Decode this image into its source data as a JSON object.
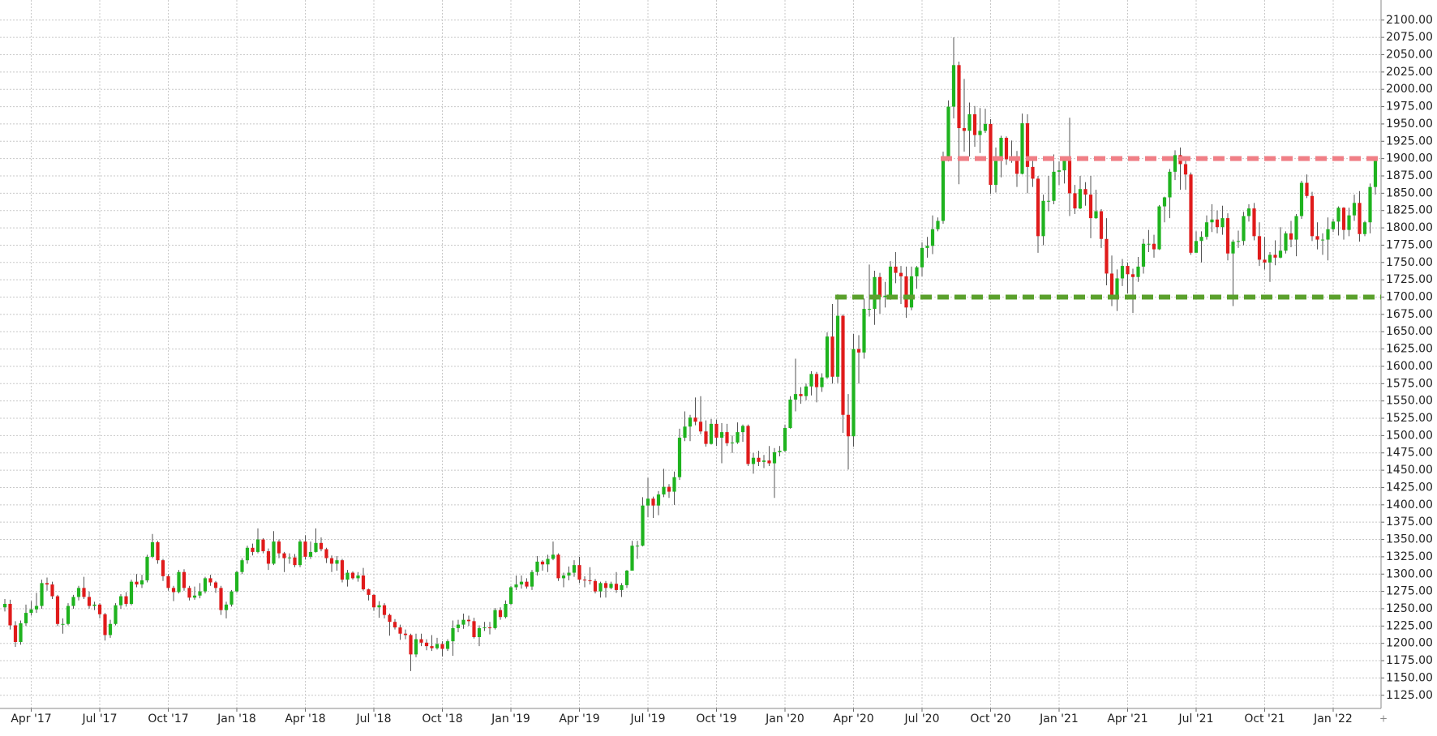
{
  "chart_data": {
    "type": "candlestick",
    "categories": [
      null,
      null,
      null,
      null,
      null,
      "Apr '17",
      null,
      null,
      null,
      null,
      null,
      null,
      null,
      null,
      null,
      null,
      null,
      null,
      "Jul '17",
      null,
      null,
      null,
      null,
      null,
      null,
      null,
      null,
      null,
      null,
      null,
      null,
      "Oct '17",
      null,
      null,
      null,
      null,
      null,
      null,
      null,
      null,
      null,
      null,
      null,
      null,
      "Jan '18",
      null,
      null,
      null,
      null,
      null,
      null,
      null,
      null,
      null,
      null,
      null,
      null,
      "Apr '18",
      null,
      null,
      null,
      null,
      null,
      null,
      null,
      null,
      null,
      null,
      null,
      null,
      "Jul '18",
      null,
      null,
      null,
      null,
      null,
      null,
      null,
      null,
      null,
      null,
      null,
      null,
      "Oct '18",
      null,
      null,
      null,
      null,
      null,
      null,
      null,
      null,
      null,
      null,
      null,
      null,
      "Jan '19",
      null,
      null,
      null,
      null,
      null,
      null,
      null,
      null,
      null,
      null,
      null,
      null,
      "Apr '19",
      null,
      null,
      null,
      null,
      null,
      null,
      null,
      null,
      null,
      null,
      null,
      null,
      "Jul '19",
      null,
      null,
      null,
      null,
      null,
      null,
      null,
      null,
      null,
      null,
      null,
      null,
      "Oct '19",
      null,
      null,
      null,
      null,
      null,
      null,
      null,
      null,
      null,
      null,
      null,
      null,
      "Jan '20",
      null,
      null,
      null,
      null,
      null,
      null,
      null,
      null,
      null,
      null,
      null,
      null,
      "Apr '20",
      null,
      null,
      null,
      null,
      null,
      null,
      null,
      null,
      null,
      null,
      null,
      null,
      "Jul '20",
      null,
      null,
      null,
      null,
      null,
      null,
      null,
      null,
      null,
      null,
      null,
      null,
      "Oct '20",
      null,
      null,
      null,
      null,
      null,
      null,
      null,
      null,
      null,
      null,
      null,
      null,
      "Jan '21",
      null,
      null,
      null,
      null,
      null,
      null,
      null,
      null,
      null,
      null,
      null,
      null,
      "Apr '21",
      null,
      null,
      null,
      null,
      null,
      null,
      null,
      null,
      null,
      null,
      null,
      null,
      "Jul '21",
      null,
      null,
      null,
      null,
      null,
      null,
      null,
      null,
      null,
      null,
      null,
      null,
      "Oct '21",
      null,
      null,
      null,
      null,
      null,
      null,
      null,
      null,
      null,
      null,
      null,
      null,
      "Jan '22",
      null,
      null,
      null,
      null,
      null,
      null,
      null,
      null
    ],
    "open": [
      1252,
      1257,
      1226,
      1202,
      1229,
      1244,
      1249,
      1254,
      1287,
      1285,
      1268,
      1228,
      1228,
      1254,
      1267,
      1280,
      1267,
      1254,
      1256,
      1242,
      1212,
      1228,
      1255,
      1268,
      1257,
      1289,
      1285,
      1291,
      1325,
      1346,
      1320,
      1297,
      1280,
      1274,
      1303,
      1280,
      1266,
      1269,
      1275,
      1294,
      1288,
      1280,
      1248,
      1256,
      1275,
      1303,
      1320,
      1338,
      1332,
      1350,
      1333,
      1315,
      1347,
      1330,
      1323,
      1324,
      1313,
      1347,
      1325,
      1332,
      1345,
      1336,
      1323,
      1315,
      1320,
      1292,
      1302,
      1294,
      1298,
      1278,
      1270,
      1252,
      1255,
      1241,
      1231,
      1223,
      1214,
      1212,
      1184,
      1206,
      1201,
      1196,
      1193,
      1199,
      1192,
      1203,
      1222,
      1227,
      1234,
      1232,
      1209,
      1222,
      1223,
      1222,
      1248,
      1238,
      1257,
      1281,
      1285,
      1289,
      1282,
      1303,
      1318,
      1314,
      1322,
      1328,
      1294,
      1298,
      1302,
      1313,
      1292,
      1291,
      1290,
      1275,
      1287,
      1280,
      1286,
      1277,
      1284,
      1305,
      1341,
      1341,
      1399,
      1409,
      1399,
      1415,
      1426,
      1419,
      1440,
      1497,
      1513,
      1526,
      1520,
      1506,
      1488,
      1517,
      1497,
      1505,
      1489,
      1490,
      1505,
      1514,
      1459,
      1468,
      1462,
      1464,
      1460,
      1476,
      1478,
      1511,
      1552,
      1560,
      1557,
      1571,
      1589,
      1570,
      1584,
      1643,
      1585,
      1673,
      1530,
      1499,
      1625,
      1620,
      1683,
      1683,
      1729,
      1700,
      1702,
      1744,
      1735,
      1730,
      1685,
      1730,
      1743,
      1771,
      1774,
      1798,
      1810,
      1902,
      1975,
      2035,
      1944,
      1940,
      1964,
      1934,
      1940,
      1950,
      1862,
      1900,
      1930,
      1899,
      1902,
      1878,
      1951,
      1888,
      1871,
      1788,
      1839,
      1839,
      1881,
      1883,
      1898,
      1850,
      1828,
      1856,
      1848,
      1814,
      1824,
      1784,
      1734,
      1700,
      1727,
      1745,
      1733,
      1729,
      1744,
      1777,
      1777,
      1769,
      1831,
      1844,
      1881,
      1905,
      1892,
      1877,
      1764,
      1781,
      1787,
      1808,
      1812,
      1801,
      1814,
      1763,
      1780,
      1781,
      1817,
      1828,
      1788,
      1754,
      1750,
      1761,
      1757,
      1767,
      1792,
      1783,
      1817,
      1865,
      1846,
      1788,
      1783,
      1783,
      1798,
      1809,
      1829,
      1797,
      1818,
      1836,
      1791,
      1808,
      1859
    ],
    "high": [
      1264,
      1263,
      1232,
      1233,
      1256,
      1261,
      1273,
      1292,
      1295,
      1289,
      1270,
      1236,
      1258,
      1270,
      1283,
      1296,
      1275,
      1260,
      1258,
      1244,
      1234,
      1258,
      1271,
      1274,
      1292,
      1300,
      1299,
      1328,
      1358,
      1348,
      1322,
      1300,
      1283,
      1306,
      1307,
      1283,
      1282,
      1287,
      1296,
      1299,
      1290,
      1283,
      1260,
      1277,
      1305,
      1323,
      1341,
      1344,
      1366,
      1352,
      1337,
      1362,
      1350,
      1332,
      1330,
      1329,
      1350,
      1356,
      1347,
      1366,
      1353,
      1338,
      1327,
      1326,
      1322,
      1306,
      1304,
      1303,
      1309,
      1279,
      1271,
      1261,
      1258,
      1243,
      1235,
      1227,
      1220,
      1214,
      1214,
      1214,
      1206,
      1212,
      1208,
      1203,
      1206,
      1233,
      1234,
      1243,
      1240,
      1237,
      1226,
      1231,
      1231,
      1251,
      1252,
      1262,
      1283,
      1298,
      1298,
      1294,
      1306,
      1326,
      1320,
      1328,
      1347,
      1330,
      1302,
      1311,
      1320,
      1325,
      1297,
      1310,
      1293,
      1289,
      1290,
      1289,
      1303,
      1287,
      1306,
      1348,
      1348,
      1411,
      1439,
      1412,
      1420,
      1452,
      1430,
      1448,
      1510,
      1535,
      1530,
      1555,
      1557,
      1522,
      1524,
      1523,
      1518,
      1517,
      1500,
      1519,
      1516,
      1516,
      1475,
      1478,
      1472,
      1485,
      1482,
      1485,
      1516,
      1557,
      1611,
      1570,
      1575,
      1593,
      1592,
      1590,
      1649,
      1690,
      1704,
      1675,
      1560,
      1647,
      1645,
      1698,
      1747,
      1738,
      1735,
      1722,
      1752,
      1765,
      1745,
      1744,
      1744,
      1745,
      1779,
      1787,
      1818,
      1815,
      1910,
      1984,
      2075,
      2040,
      2015,
      1981,
      1976,
      1973,
      1972,
      1957,
      1916,
      1933,
      1932,
      1926,
      1911,
      1965,
      1964,
      1900,
      1875,
      1848,
      1875,
      1906,
      1896,
      1903,
      1959,
      1862,
      1875,
      1866,
      1875,
      1855,
      1827,
      1814,
      1760,
      1740,
      1755,
      1750,
      1741,
      1758,
      1784,
      1797,
      1790,
      1833,
      1845,
      1885,
      1912,
      1916,
      1903,
      1880,
      1795,
      1795,
      1818,
      1834,
      1825,
      1832,
      1821,
      1783,
      1796,
      1823,
      1834,
      1836,
      1808,
      1787,
      1765,
      1782,
      1801,
      1795,
      1810,
      1820,
      1868,
      1877,
      1852,
      1808,
      1792,
      1815,
      1813,
      1831,
      1830,
      1829,
      1848,
      1853,
      1810,
      1864,
      1902
    ],
    "low": [
      1246,
      1220,
      1195,
      1198,
      1225,
      1240,
      1244,
      1250,
      1276,
      1264,
      1225,
      1214,
      1226,
      1250,
      1262,
      1264,
      1250,
      1248,
      1236,
      1204,
      1208,
      1226,
      1250,
      1253,
      1255,
      1281,
      1280,
      1288,
      1323,
      1315,
      1290,
      1276,
      1261,
      1272,
      1276,
      1262,
      1263,
      1265,
      1272,
      1283,
      1273,
      1241,
      1236,
      1253,
      1273,
      1300,
      1315,
      1327,
      1330,
      1330,
      1306,
      1313,
      1323,
      1303,
      1315,
      1310,
      1310,
      1321,
      1322,
      1331,
      1333,
      1316,
      1303,
      1305,
      1288,
      1282,
      1292,
      1289,
      1276,
      1262,
      1247,
      1237,
      1236,
      1211,
      1220,
      1205,
      1206,
      1160,
      1180,
      1196,
      1190,
      1189,
      1191,
      1181,
      1189,
      1182,
      1216,
      1221,
      1225,
      1207,
      1196,
      1218,
      1213,
      1220,
      1234,
      1236,
      1255,
      1277,
      1279,
      1279,
      1277,
      1298,
      1305,
      1303,
      1320,
      1290,
      1281,
      1291,
      1296,
      1287,
      1281,
      1285,
      1272,
      1266,
      1266,
      1278,
      1273,
      1267,
      1280,
      1305,
      1322,
      1340,
      1382,
      1381,
      1385,
      1411,
      1410,
      1400,
      1436,
      1492,
      1492,
      1515,
      1502,
      1484,
      1487,
      1485,
      1460,
      1485,
      1475,
      1488,
      1491,
      1456,
      1445,
      1456,
      1453,
      1456,
      1410,
      1470,
      1476,
      1510,
      1535,
      1546,
      1551,
      1558,
      1548,
      1563,
      1582,
      1575,
      1576,
      1504,
      1451,
      1484,
      1575,
      1611,
      1672,
      1660,
      1676,
      1685,
      1696,
      1720,
      1690,
      1670,
      1681,
      1712,
      1730,
      1757,
      1762,
      1795,
      1806,
      1896,
      1958,
      1863,
      1910,
      1903,
      1917,
      1908,
      1937,
      1849,
      1851,
      1873,
      1891,
      1894,
      1859,
      1877,
      1850,
      1859,
      1764,
      1775,
      1824,
      1834,
      1862,
      1864,
      1817,
      1820,
      1827,
      1832,
      1785,
      1813,
      1771,
      1717,
      1687,
      1680,
      1716,
      1705,
      1677,
      1722,
      1734,
      1765,
      1757,
      1768,
      1808,
      1814,
      1869,
      1855,
      1855,
      1761,
      1770,
      1750,
      1783,
      1794,
      1792,
      1790,
      1753,
      1687,
      1771,
      1775,
      1809,
      1782,
      1745,
      1740,
      1722,
      1746,
      1756,
      1763,
      1772,
      1759,
      1813,
      1843,
      1781,
      1769,
      1761,
      1753,
      1794,
      1789,
      1783,
      1788,
      1810,
      1780,
      1788,
      1792,
      1848
    ],
    "close": [
      1257,
      1226,
      1202,
      1229,
      1244,
      1249,
      1254,
      1287,
      1285,
      1268,
      1228,
      1228,
      1254,
      1267,
      1280,
      1267,
      1254,
      1256,
      1242,
      1212,
      1228,
      1255,
      1268,
      1257,
      1289,
      1285,
      1291,
      1325,
      1346,
      1320,
      1297,
      1280,
      1274,
      1303,
      1280,
      1266,
      1269,
      1275,
      1294,
      1288,
      1280,
      1248,
      1256,
      1275,
      1303,
      1320,
      1338,
      1332,
      1350,
      1333,
      1315,
      1347,
      1330,
      1323,
      1324,
      1313,
      1347,
      1325,
      1332,
      1345,
      1336,
      1323,
      1315,
      1320,
      1292,
      1302,
      1294,
      1298,
      1278,
      1270,
      1252,
      1255,
      1241,
      1231,
      1223,
      1214,
      1212,
      1184,
      1206,
      1201,
      1196,
      1193,
      1199,
      1192,
      1203,
      1222,
      1227,
      1234,
      1232,
      1209,
      1222,
      1223,
      1222,
      1248,
      1238,
      1257,
      1281,
      1285,
      1289,
      1282,
      1303,
      1318,
      1314,
      1322,
      1328,
      1294,
      1298,
      1302,
      1313,
      1292,
      1291,
      1290,
      1275,
      1287,
      1280,
      1286,
      1277,
      1284,
      1305,
      1341,
      1341,
      1399,
      1409,
      1399,
      1415,
      1426,
      1419,
      1440,
      1497,
      1513,
      1526,
      1520,
      1506,
      1488,
      1517,
      1497,
      1505,
      1489,
      1490,
      1505,
      1514,
      1459,
      1468,
      1462,
      1464,
      1460,
      1476,
      1478,
      1511,
      1552,
      1560,
      1557,
      1571,
      1589,
      1570,
      1584,
      1643,
      1585,
      1673,
      1530,
      1499,
      1625,
      1620,
      1683,
      1683,
      1729,
      1700,
      1702,
      1744,
      1735,
      1730,
      1685,
      1730,
      1743,
      1771,
      1774,
      1798,
      1810,
      1902,
      1975,
      2035,
      1944,
      1940,
      1964,
      1934,
      1940,
      1950,
      1862,
      1900,
      1930,
      1899,
      1902,
      1878,
      1951,
      1888,
      1871,
      1788,
      1839,
      1839,
      1881,
      1883,
      1898,
      1850,
      1828,
      1856,
      1848,
      1814,
      1824,
      1784,
      1734,
      1700,
      1727,
      1745,
      1733,
      1729,
      1744,
      1777,
      1777,
      1769,
      1831,
      1844,
      1881,
      1905,
      1892,
      1877,
      1764,
      1781,
      1787,
      1808,
      1812,
      1801,
      1814,
      1763,
      1780,
      1781,
      1817,
      1828,
      1788,
      1754,
      1750,
      1761,
      1757,
      1767,
      1792,
      1783,
      1817,
      1865,
      1846,
      1788,
      1783,
      1783,
      1798,
      1809,
      1829,
      1797,
      1818,
      1836,
      1791,
      1808,
      1859,
      1898
    ],
    "up_color": "#1fb31f",
    "down_color": "#e01b1b",
    "wick_color": "#555555",
    "ylim": [
      1106,
      2129
    ],
    "yticks": [
      {
        "value": 1125,
        "label": "1125.00"
      },
      {
        "value": 1150,
        "label": "1150.00"
      },
      {
        "value": 1175,
        "label": "1175.00"
      },
      {
        "value": 1200,
        "label": "1200.00"
      },
      {
        "value": 1225,
        "label": "1225.00"
      },
      {
        "value": 1250,
        "label": "1250.00"
      },
      {
        "value": 1275,
        "label": "1275.00"
      },
      {
        "value": 1300,
        "label": "1300.00"
      },
      {
        "value": 1325,
        "label": "1325.00"
      },
      {
        "value": 1350,
        "label": "1350.00"
      },
      {
        "value": 1375,
        "label": "1375.00"
      },
      {
        "value": 1400,
        "label": "1400.00"
      },
      {
        "value": 1425,
        "label": "1425.00"
      },
      {
        "value": 1450,
        "label": "1450.00"
      },
      {
        "value": 1475,
        "label": "1475.00"
      },
      {
        "value": 1500,
        "label": "1500.00"
      },
      {
        "value": 1525,
        "label": "1525.00"
      },
      {
        "value": 1550,
        "label": "1550.00"
      },
      {
        "value": 1575,
        "label": "1575.00"
      },
      {
        "value": 1600,
        "label": "1600.00"
      },
      {
        "value": 1625,
        "label": "1625.00"
      },
      {
        "value": 1650,
        "label": "1650.00"
      },
      {
        "value": 1675,
        "label": "1675.00"
      },
      {
        "value": 1700,
        "label": "1700.00"
      },
      {
        "value": 1725,
        "label": "1725.00"
      },
      {
        "value": 1750,
        "label": "1750.00"
      },
      {
        "value": 1775,
        "label": "1775.00"
      },
      {
        "value": 1800,
        "label": "1800.00"
      },
      {
        "value": 1825,
        "label": "1825.00"
      },
      {
        "value": 1850,
        "label": "1850.00"
      },
      {
        "value": 1875,
        "label": "1875.00"
      },
      {
        "value": 1900,
        "label": "1900.00"
      },
      {
        "value": 1925,
        "label": "1925.00"
      },
      {
        "value": 1950,
        "label": "1950.00"
      },
      {
        "value": 1975,
        "label": "1975.00"
      },
      {
        "value": 2000,
        "label": "2000.00"
      },
      {
        "value": 2025,
        "label": "2025.00"
      },
      {
        "value": 2050,
        "label": "2050.00"
      },
      {
        "value": 2075,
        "label": "2075.00"
      },
      {
        "value": 2100,
        "label": "2100.00"
      }
    ],
    "grid": true,
    "hlines": [
      {
        "value": 1900,
        "color": "#f07f86",
        "start": 178
      },
      {
        "value": 1700,
        "color": "#5aa02c",
        "start": 158
      }
    ]
  }
}
